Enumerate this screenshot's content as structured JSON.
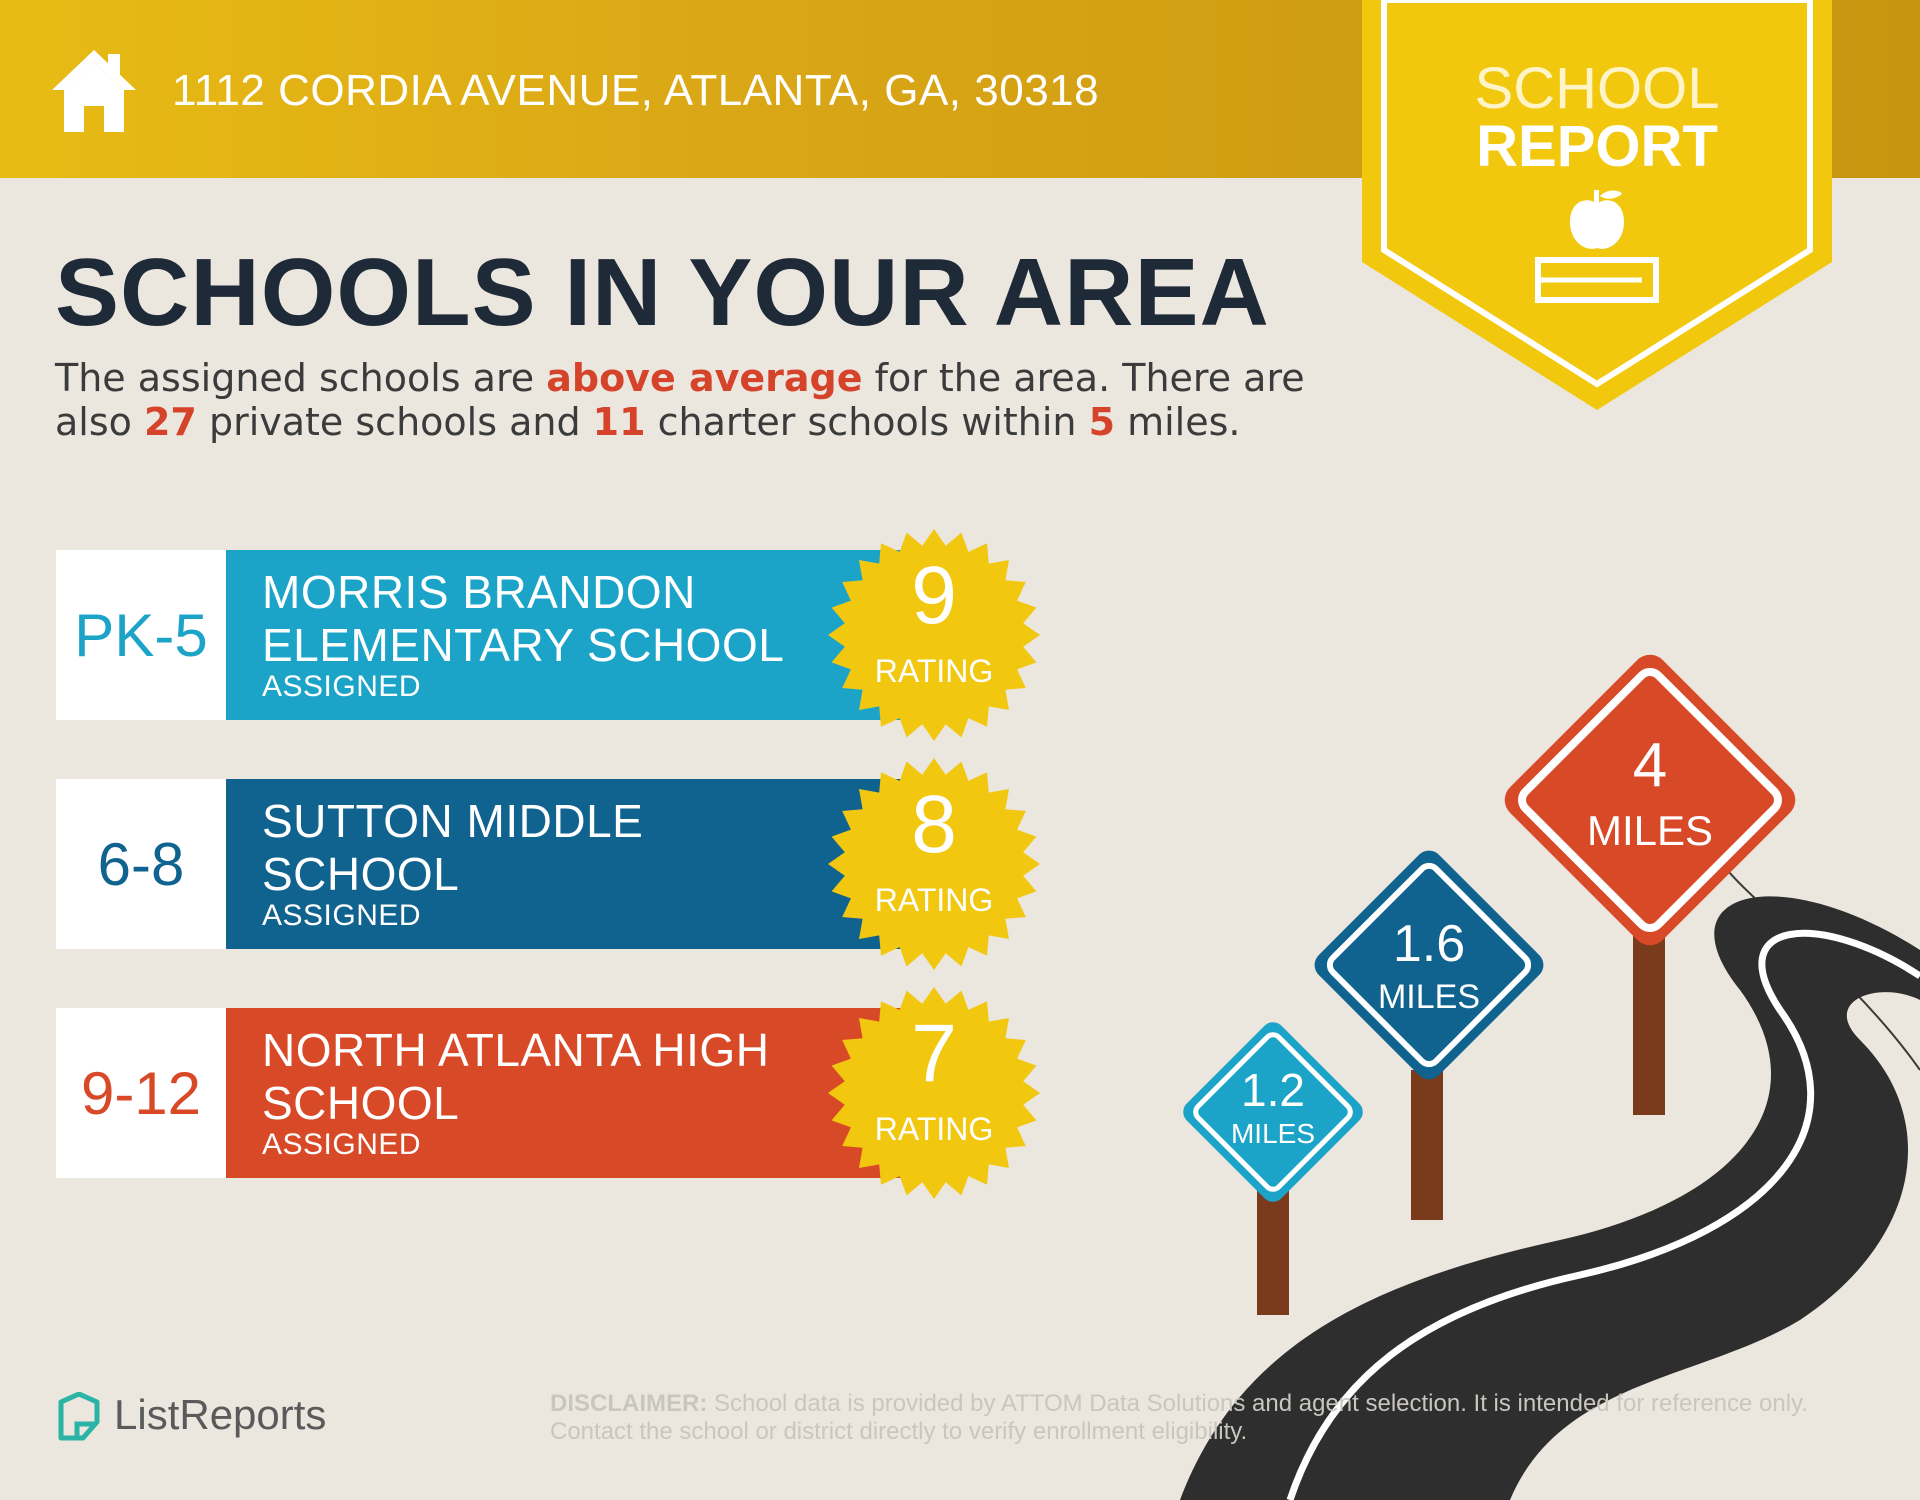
{
  "header": {
    "address": "1112 CORDIA AVENUE, ATLANTA, GA, 30318"
  },
  "banner": {
    "line1": "SCHOOL",
    "line2": "REPORT"
  },
  "headline": "SCHOOLS IN YOUR AREA",
  "intro": {
    "p1": "The assigned schools are ",
    "h1": "above average",
    "p2": " for the area. There are also ",
    "h2": "27",
    "p3": " private schools and ",
    "h3": "11",
    "p4": " charter schools within ",
    "h4": "5",
    "p5": " miles."
  },
  "schools": [
    {
      "grades": "PK-5",
      "name": "MORRIS BRANDON ELEMENTARY SCHOOL",
      "status": "ASSIGNED",
      "rating": "9",
      "rating_label": "RATING",
      "color": "#1ca4c8"
    },
    {
      "grades": "6-8",
      "name": "SUTTON MIDDLE SCHOOL",
      "status": "ASSIGNED",
      "rating": "8",
      "rating_label": "RATING",
      "color": "#10628f"
    },
    {
      "grades": "9-12",
      "name": "NORTH ATLANTA HIGH SCHOOL",
      "status": "ASSIGNED",
      "rating": "7",
      "rating_label": "RATING",
      "color": "#d84a27"
    }
  ],
  "signs": [
    {
      "value": "1.2",
      "unit": "MILES",
      "color": "#1ca4c8"
    },
    {
      "value": "1.6",
      "unit": "MILES",
      "color": "#10628f"
    },
    {
      "value": "4",
      "unit": "MILES",
      "color": "#d84a27"
    }
  ],
  "footer": {
    "logo_text": "ListReports",
    "disclaimer_label": "DISCLAIMER:",
    "disclaimer_text": " School data is provided by ATTOM Data Solutions and agent selection. It is intended for reference only. Contact the school or district directly to verify enrollment eligibility."
  },
  "colors": {
    "header_gold": "#d9a616",
    "banner_yellow": "#f2c80f",
    "seal_yellow": "#f2c70f",
    "headline_navy": "#1f2a38",
    "highlight_red": "#d5432a",
    "background": "#ebe7df"
  },
  "icons": [
    "house-icon",
    "apple-on-book-icon",
    "listreports-logo-icon"
  ]
}
